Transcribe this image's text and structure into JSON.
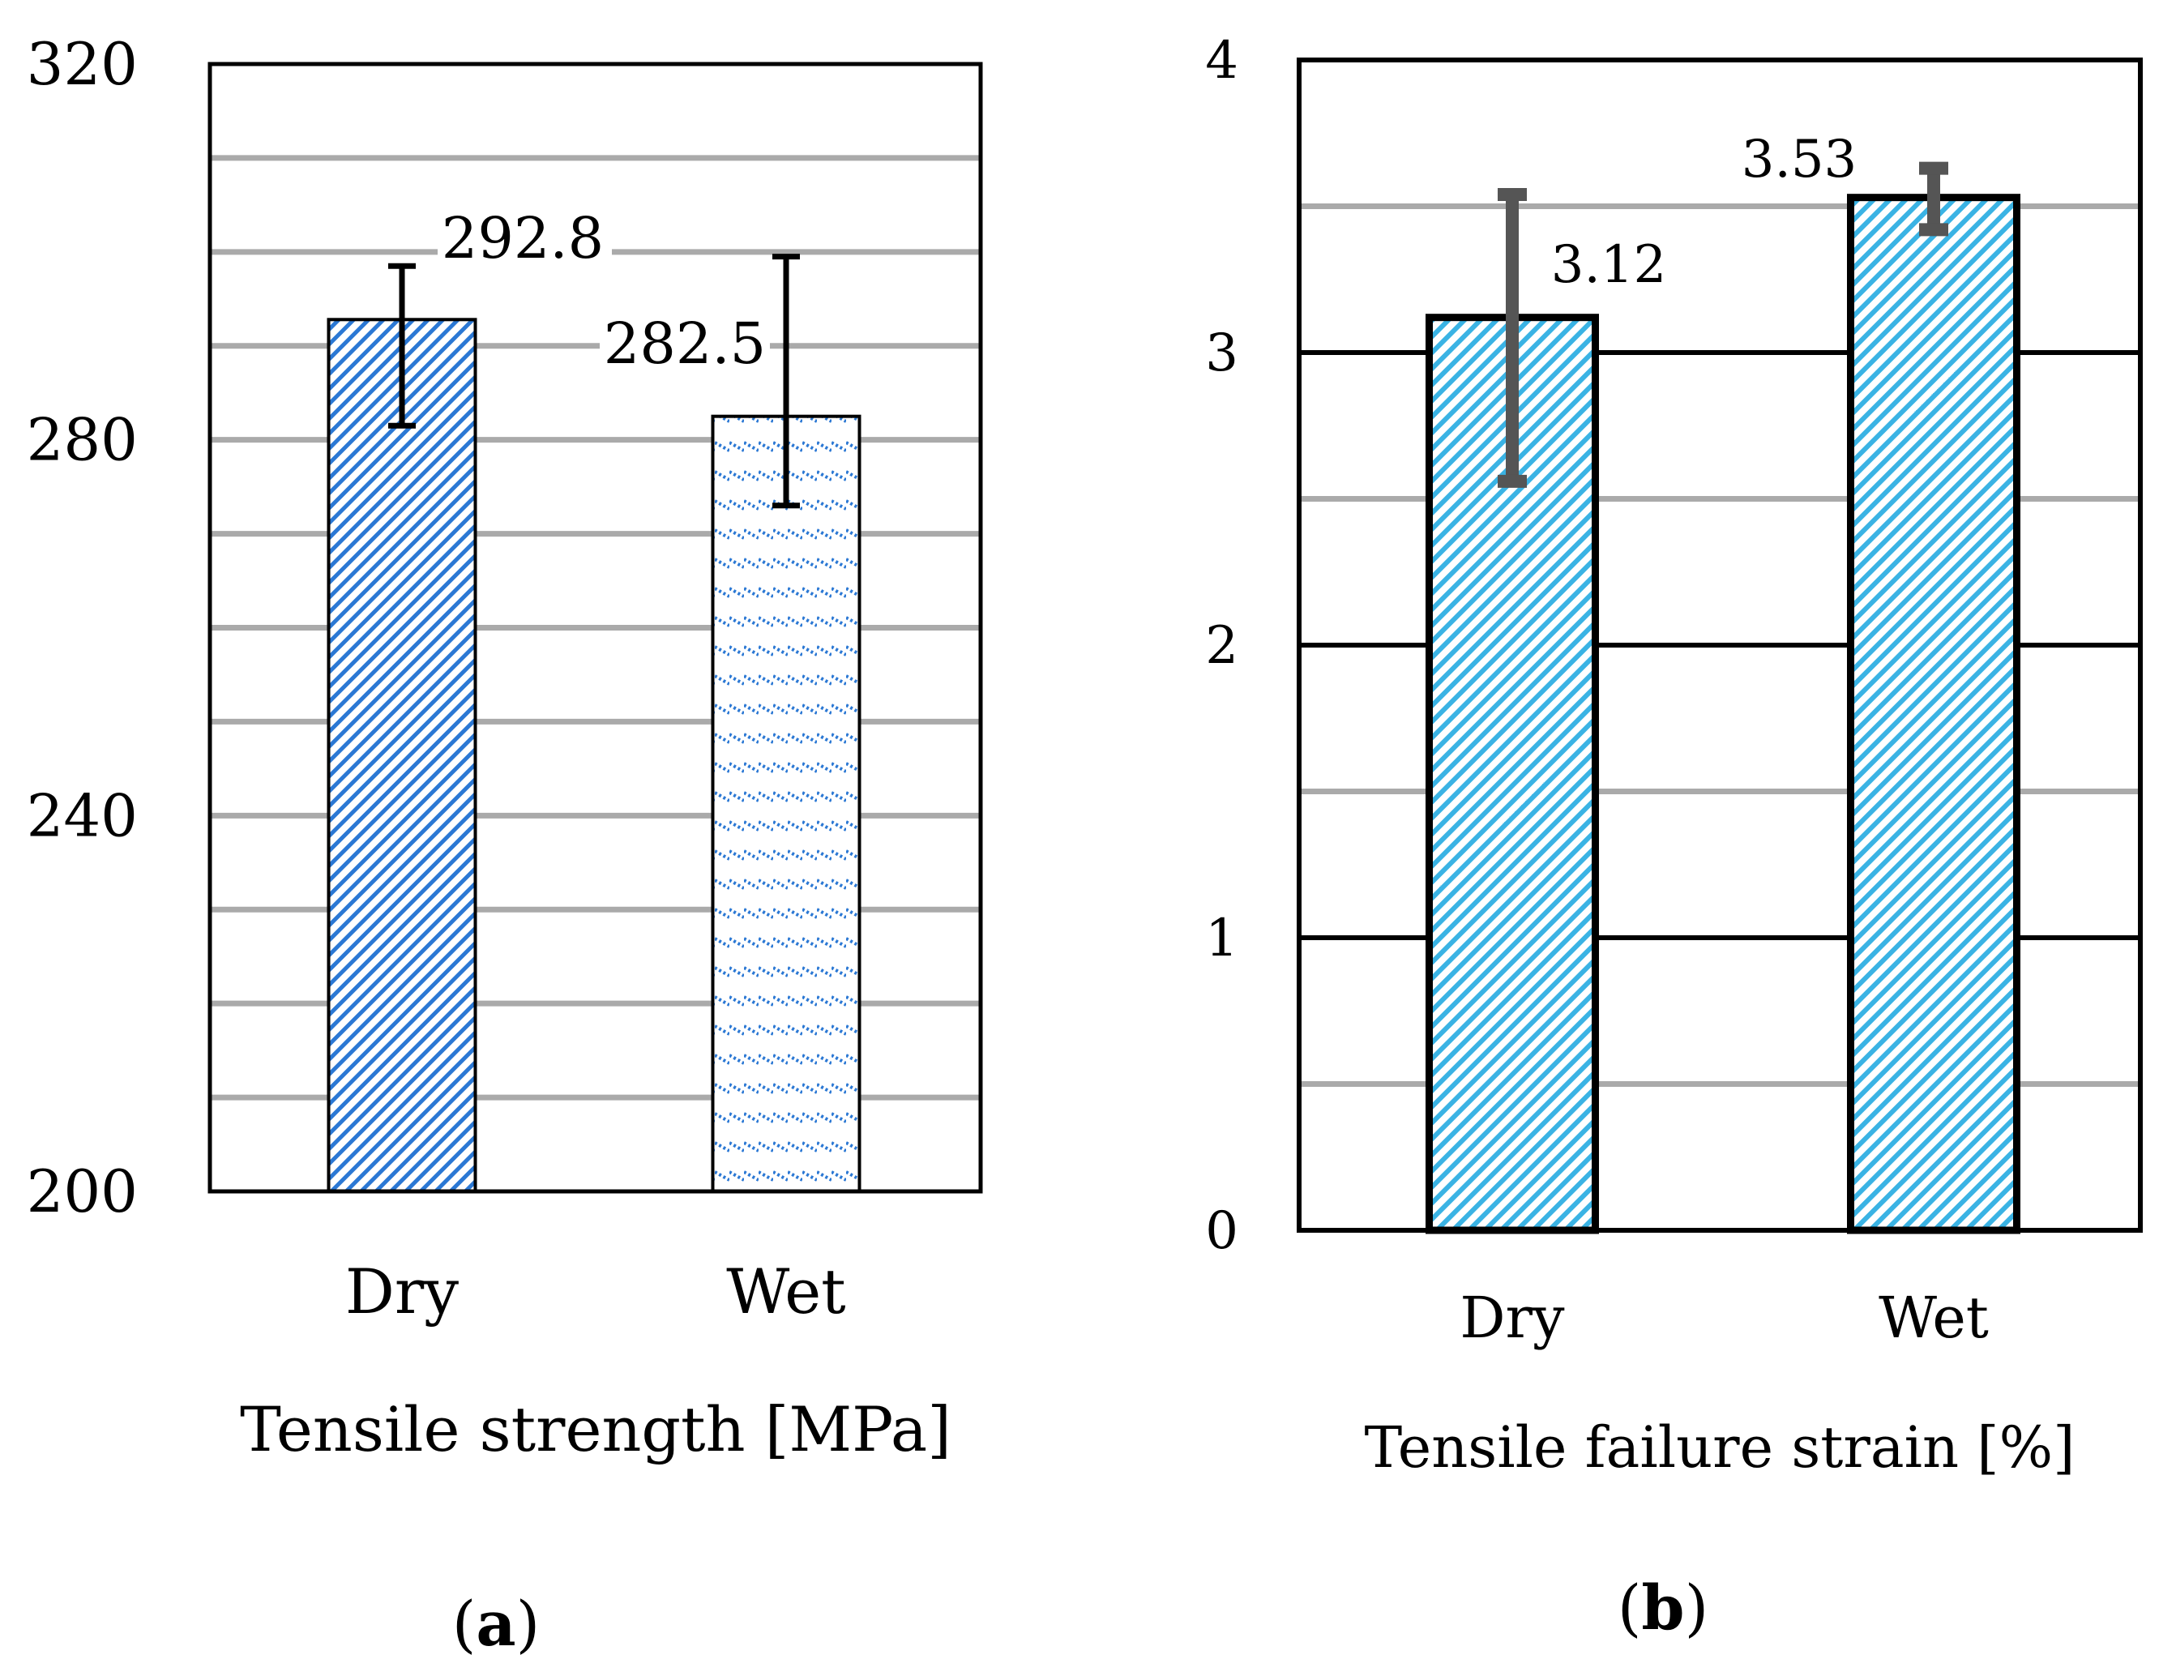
{
  "chart_data": [
    {
      "type": "bar",
      "panel_label": "a",
      "categories": [
        "Dry",
        "Wet"
      ],
      "values": [
        292.8,
        282.5
      ],
      "data_labels": [
        "292.8",
        "282.5"
      ],
      "error_low": [
        281.5,
        273.0
      ],
      "error_high": [
        298.5,
        299.5
      ],
      "xlabel": "Tensile strength [MPa]",
      "ylim": [
        200,
        320
      ],
      "major_ticks": [
        200,
        240,
        280,
        320
      ],
      "tick_labels": [
        "200",
        "240",
        "280",
        "320"
      ],
      "gridlines": [
        210,
        220,
        230,
        240,
        250,
        260,
        270,
        280,
        290,
        300,
        310
      ],
      "colors": {
        "bar": "#2b78d4",
        "grid": "#aaaaaa",
        "error": "#000000"
      }
    },
    {
      "type": "bar",
      "panel_label": "b",
      "categories": [
        "Dry",
        "Wet"
      ],
      "values": [
        3.12,
        3.53
      ],
      "data_labels": [
        "3.12",
        "3.53"
      ],
      "error_low": [
        2.56,
        3.42
      ],
      "error_high": [
        3.54,
        3.63
      ],
      "xlabel": "Tensile failure strain [%]",
      "ylim": [
        0,
        4
      ],
      "major_ticks": [
        0,
        1,
        2,
        3,
        4
      ],
      "tick_labels": [
        "0",
        "1",
        "2",
        "3",
        "4"
      ],
      "minor_gridlines": [
        0.5,
        1.5,
        2.5,
        3.5
      ],
      "major_gridlines": [
        1,
        2,
        3
      ],
      "colors": {
        "bar": "#3ab3e4",
        "grid": "#aaaaaa",
        "major_grid": "#000000",
        "error": "#555555"
      }
    }
  ]
}
